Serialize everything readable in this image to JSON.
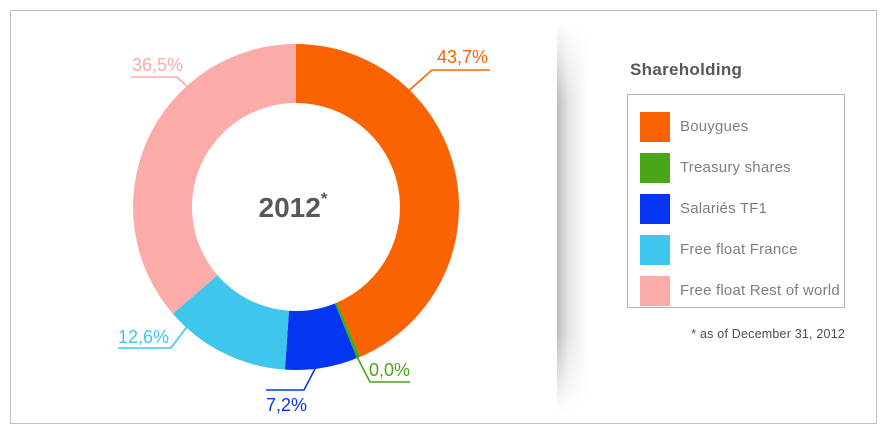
{
  "chart_data": {
    "type": "pie",
    "subtype": "donut",
    "title": "Shareholding",
    "center_label": "2012",
    "center_label_superscript": "*",
    "direction": "clockwise",
    "start_angle_deg": 0,
    "legend_position": "right",
    "unit": "%",
    "footnote": "* as of December 31, 2012",
    "slices": [
      {
        "name": "Bouygues",
        "value": 43.7,
        "display": "43,7%",
        "color": "#F96302"
      },
      {
        "name": "Treasury shares",
        "value": 0.0,
        "display": "0,0%",
        "color": "#4BA617"
      },
      {
        "name": "Salariés TF1",
        "value": 7.2,
        "display": "7,2%",
        "color": "#0435F0"
      },
      {
        "name": "Free float France",
        "value": 12.6,
        "display": "12,6%",
        "color": "#3EC6ED"
      },
      {
        "name": "Free float Rest of world",
        "value": 36.5,
        "display": "36,5%",
        "color": "#FCACA8"
      }
    ]
  },
  "legend": {
    "title": "Shareholding",
    "footnote": "* as of December 31, 2012"
  },
  "style": {
    "text-dark": "#58585A",
    "legend-label": "#7E7E7E",
    "footnote-color": "#4D4D4D",
    "box-border": "#B3B3B3",
    "panel-border": "#BFBFBF"
  }
}
